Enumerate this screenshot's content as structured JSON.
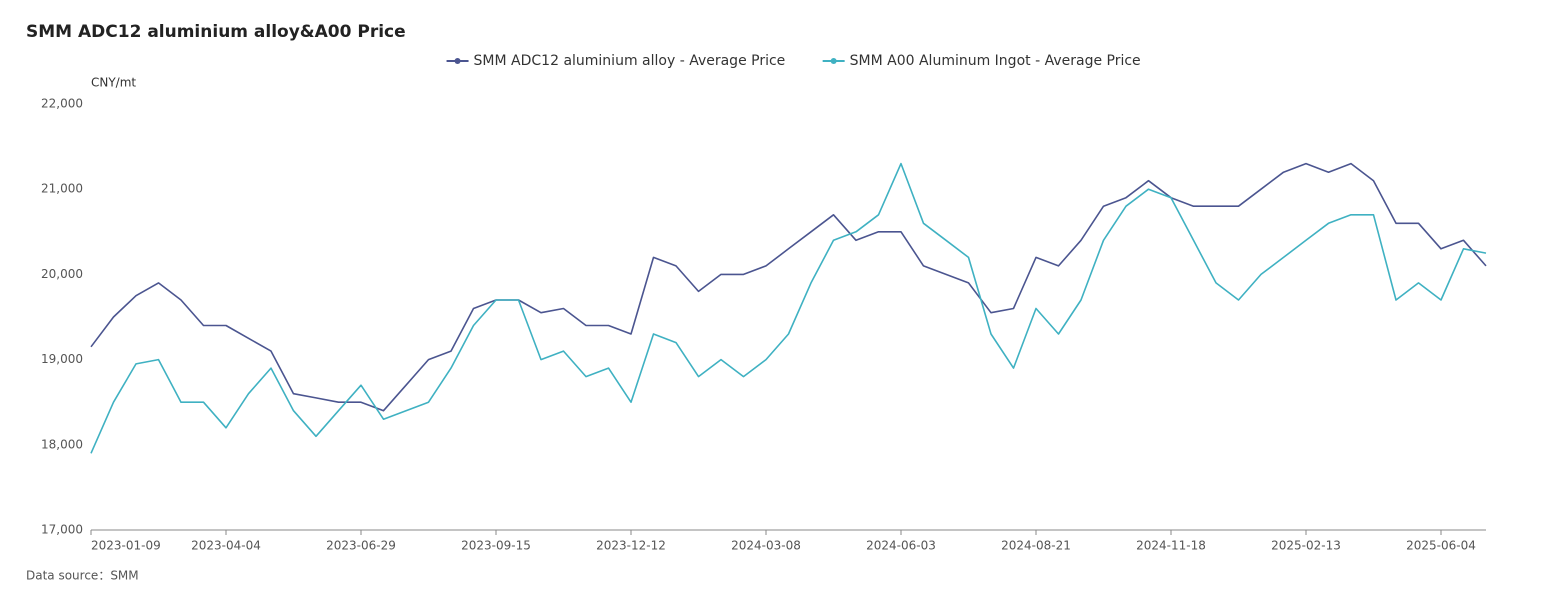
{
  "chart_data": {
    "type": "line",
    "title": "SMM ADC12 aluminium alloy&A00 Price",
    "y_unit": "CNY/mt",
    "source": "Data source：SMM",
    "categories": [
      "2023-01-09",
      "2023-01-30",
      "2023-02-13",
      "2023-02-27",
      "2023-03-09",
      "2023-03-21",
      "2023-04-04",
      "2023-04-17",
      "2023-05-04",
      "2023-05-17",
      "2023-05-31",
      "2023-06-14",
      "2023-06-29",
      "2023-07-12",
      "2023-07-25",
      "2023-08-07",
      "2023-08-18",
      "2023-08-31",
      "2023-09-15",
      "2023-10-09",
      "2023-10-20",
      "2023-10-31",
      "2023-11-13",
      "2023-11-27",
      "2023-12-12",
      "2023-12-25",
      "2024-01-08",
      "2024-01-22",
      "2024-02-05",
      "2024-02-26",
      "2024-03-08",
      "2024-03-21",
      "2024-04-02",
      "2024-04-17",
      "2024-05-06",
      "2024-05-20",
      "2024-06-03",
      "2024-06-17",
      "2024-06-28",
      "2024-07-11",
      "2024-07-24",
      "2024-08-06",
      "2024-08-21",
      "2024-09-03",
      "2024-09-19",
      "2024-10-10",
      "2024-10-23",
      "2024-11-05",
      "2024-11-18",
      "2024-12-02",
      "2024-12-13",
      "2024-12-26",
      "2025-01-09",
      "2025-01-22",
      "2025-02-13",
      "2025-02-26",
      "2025-03-13",
      "2025-03-31",
      "2025-04-17",
      "2025-05-09",
      "2025-06-04",
      "2025-06-13",
      "2025-06-23"
    ],
    "xticks": [
      "2023-01-09",
      "2023-04-04",
      "2023-06-29",
      "2023-09-15",
      "2023-12-12",
      "2024-03-08",
      "2024-06-03",
      "2024-08-21",
      "2024-11-18",
      "2025-02-13",
      "2025-06-04"
    ],
    "series": [
      {
        "name": "SMM ADC12 aluminium alloy - Average Price",
        "color": "#4b5590",
        "values": [
          19150,
          19500,
          19750,
          19900,
          19700,
          19400,
          19400,
          19250,
          19100,
          18600,
          18550,
          18500,
          18500,
          18400,
          18700,
          19000,
          19100,
          19600,
          19700,
          19700,
          19550,
          19600,
          19400,
          19400,
          19300,
          20200,
          20100,
          19800,
          20000,
          20000,
          20100,
          20300,
          20500,
          20700,
          20400,
          20500,
          20500,
          20100,
          20000,
          19900,
          19550,
          19600,
          20200,
          20100,
          20400,
          20800,
          20900,
          21100,
          20900,
          20800,
          20800,
          20800,
          21000,
          21200,
          21300,
          21200,
          21300,
          21100,
          20600,
          20600,
          20300,
          20400,
          20100
        ]
      },
      {
        "name": "SMM A00 Aluminum Ingot - Average Price",
        "color": "#3fb1c2",
        "values": [
          17900,
          18500,
          18950,
          19000,
          18500,
          18500,
          18200,
          18600,
          18900,
          18400,
          18100,
          18400,
          18700,
          18300,
          18400,
          18500,
          18900,
          19400,
          19700,
          19700,
          19000,
          19100,
          18800,
          18900,
          18500,
          19300,
          19200,
          18800,
          19000,
          18800,
          19000,
          19300,
          19900,
          20400,
          20500,
          20700,
          21300,
          20600,
          20400,
          20200,
          19300,
          18900,
          19600,
          19300,
          19700,
          20400,
          20800,
          21000,
          20900,
          20400,
          19900,
          19700,
          20000,
          20200,
          20400,
          20600,
          20700,
          20700,
          19700,
          19900,
          19700,
          20300,
          20250
        ]
      }
    ],
    "ylim": [
      17000,
      22000
    ],
    "yticks": [
      {
        "value": 17000,
        "label": "17,000"
      },
      {
        "value": 18000,
        "label": "18,000"
      },
      {
        "value": 19000,
        "label": "19,000"
      },
      {
        "value": 20000,
        "label": "20,000"
      },
      {
        "value": 21000,
        "label": "21,000"
      },
      {
        "value": 22000,
        "label": "22,000"
      }
    ],
    "grid": false,
    "legend": "top"
  }
}
